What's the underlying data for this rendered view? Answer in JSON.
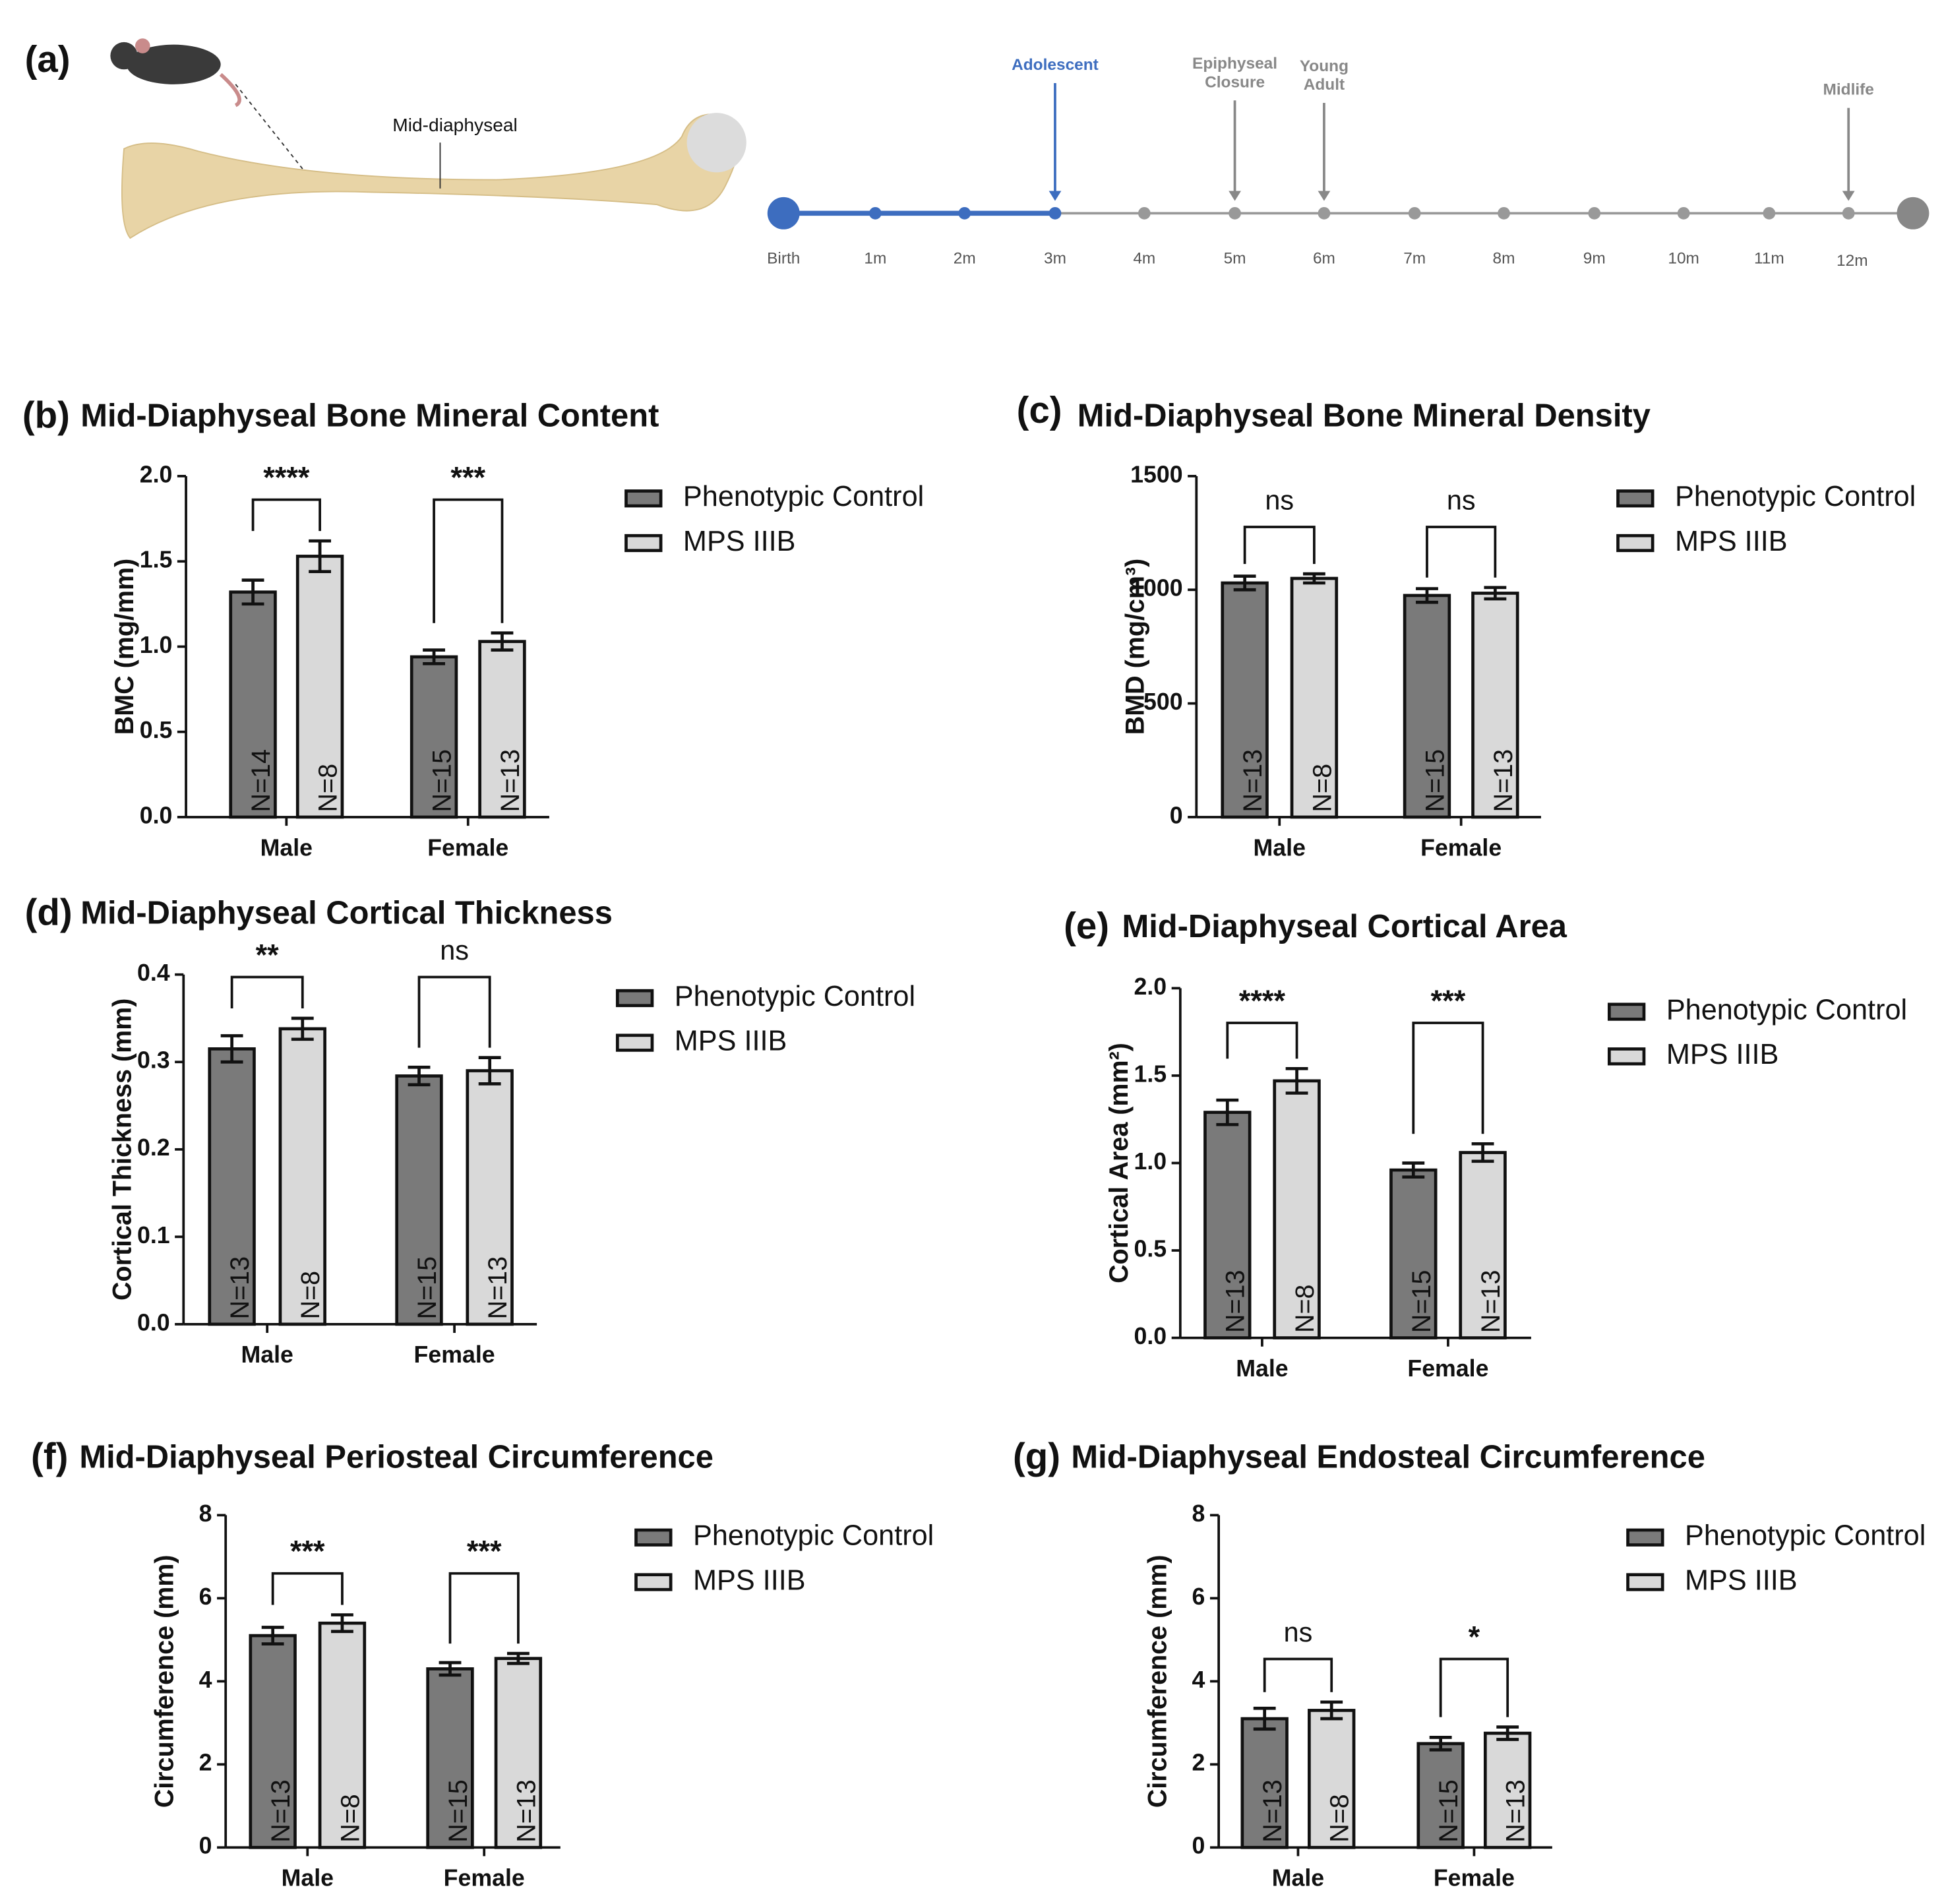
{
  "panel_a": {
    "label": "(a)",
    "bone_label": "Mid-diaphyseal",
    "timeline_ticks": [
      "Birth",
      "1m",
      "2m",
      "3m",
      "4m",
      "5m",
      "6m",
      "7m",
      "8m",
      "9m",
      "10m",
      "11m",
      "12m"
    ],
    "events": [
      {
        "lines": [
          "Adolescent"
        ]
      },
      {
        "lines": [
          "Epiphyseal",
          "Closure"
        ]
      },
      {
        "lines": [
          "Young",
          "Adult"
        ]
      },
      {
        "lines": [
          "Midlife"
        ]
      }
    ]
  },
  "chart_data": [
    {
      "type": "bar",
      "panel_label": "(b)",
      "title": "Mid-Diaphyseal Bone Mineral Content",
      "y_label": "BMC (mg/mm)",
      "categories": [
        "Male",
        "Female"
      ],
      "ylim": [
        0,
        2
      ],
      "yticks": [
        {
          "value": 0,
          "label": "0.0"
        },
        {
          "value": 0.5,
          "label": "0.5"
        },
        {
          "value": 1,
          "label": "1.0"
        },
        {
          "value": 1.5,
          "label": "1.5"
        },
        {
          "value": 2,
          "label": "2.0"
        }
      ],
      "series": [
        {
          "name": "Phenotypic Control",
          "color": "#7a7a7a",
          "values": [
            1.32,
            0.94
          ],
          "errors": [
            0.07,
            0.04
          ],
          "n_labels": [
            "N=14",
            "N=15"
          ]
        },
        {
          "name": "MPS IIIB",
          "color": "#d9d9d9",
          "values": [
            1.53,
            1.03
          ],
          "errors": [
            0.09,
            0.05
          ],
          "n_labels": [
            "N=8",
            "N=13"
          ]
        }
      ],
      "significance": [
        "****",
        "***"
      ]
    },
    {
      "type": "bar",
      "panel_label": "(c)",
      "title": "Mid-Diaphyseal Bone Mineral Density",
      "y_label": "BMD (mg/cm³)",
      "categories": [
        "Male",
        "Female"
      ],
      "ylim": [
        0,
        1500
      ],
      "yticks": [
        0,
        500,
        1000,
        1500
      ],
      "series": [
        {
          "name": "Phenotypic Control",
          "color": "#7a7a7a",
          "values": [
            1030,
            975
          ],
          "errors": [
            30,
            30
          ],
          "n_labels": [
            "N=13",
            "N=15"
          ]
        },
        {
          "name": "MPS IIIB",
          "color": "#d9d9d9",
          "values": [
            1050,
            985
          ],
          "errors": [
            20,
            25
          ],
          "n_labels": [
            "N=8",
            "N=13"
          ]
        }
      ],
      "significance": [
        "ns",
        "ns"
      ]
    },
    {
      "type": "bar",
      "panel_label": "(d)",
      "title": "Mid-Diaphyseal Cortical Thickness",
      "y_label": "Cortical Thickness (mm)",
      "categories": [
        "Male",
        "Female"
      ],
      "ylim": [
        0,
        0.4
      ],
      "yticks": [
        {
          "value": 0,
          "label": "0.0"
        },
        0.1,
        0.2,
        0.3,
        0.4
      ],
      "series": [
        {
          "name": "Phenotypic Control",
          "color": "#7a7a7a",
          "values": [
            0.315,
            0.284
          ],
          "errors": [
            0.015,
            0.01
          ],
          "n_labels": [
            "N=13",
            "N=15"
          ]
        },
        {
          "name": "MPS IIIB",
          "color": "#d9d9d9",
          "values": [
            0.338,
            0.29
          ],
          "errors": [
            0.012,
            0.015
          ],
          "n_labels": [
            "N=8",
            "N=13"
          ]
        }
      ],
      "significance": [
        "**",
        "ns"
      ]
    },
    {
      "type": "bar",
      "panel_label": "(e)",
      "title": "Mid-Diaphyseal Cortical Area",
      "y_label": "Cortical Area (mm²)",
      "categories": [
        "Male",
        "Female"
      ],
      "ylim": [
        0,
        2
      ],
      "yticks": [
        {
          "value": 0,
          "label": "0.0"
        },
        {
          "value": 0.5,
          "label": "0.5"
        },
        {
          "value": 1,
          "label": "1.0"
        },
        {
          "value": 1.5,
          "label": "1.5"
        },
        {
          "value": 2,
          "label": "2.0"
        }
      ],
      "series": [
        {
          "name": "Phenotypic Control",
          "color": "#7a7a7a",
          "values": [
            1.29,
            0.96
          ],
          "errors": [
            0.07,
            0.04
          ],
          "n_labels": [
            "N=13",
            "N=15"
          ]
        },
        {
          "name": "MPS IIIB",
          "color": "#d9d9d9",
          "values": [
            1.47,
            1.06
          ],
          "errors": [
            0.07,
            0.05
          ],
          "n_labels": [
            "N=8",
            "N=13"
          ]
        }
      ],
      "significance": [
        "****",
        "***"
      ]
    },
    {
      "type": "bar",
      "panel_label": "(f)",
      "title": "Mid-Diaphyseal Periosteal Circumference",
      "y_label": "Circumference (mm)",
      "categories": [
        "Male",
        "Female"
      ],
      "ylim": [
        0,
        8
      ],
      "yticks": [
        0,
        2,
        4,
        6,
        8
      ],
      "series": [
        {
          "name": "Phenotypic Control",
          "color": "#7a7a7a",
          "values": [
            5.1,
            4.3
          ],
          "errors": [
            0.2,
            0.15
          ],
          "n_labels": [
            "N=13",
            "N=15"
          ]
        },
        {
          "name": "MPS IIIB",
          "color": "#d9d9d9",
          "values": [
            5.4,
            4.55
          ],
          "errors": [
            0.2,
            0.12
          ],
          "n_labels": [
            "N=8",
            "N=13"
          ]
        }
      ],
      "significance": [
        "***",
        "***"
      ]
    },
    {
      "type": "bar",
      "panel_label": "(g)",
      "title": "Mid-Diaphyseal Endosteal Circumference",
      "y_label": "Circumference (mm)",
      "categories": [
        "Male",
        "Female"
      ],
      "ylim": [
        0,
        8
      ],
      "yticks": [
        0,
        2,
        4,
        6,
        8
      ],
      "series": [
        {
          "name": "Phenotypic Control",
          "color": "#7a7a7a",
          "values": [
            3.1,
            2.5
          ],
          "errors": [
            0.25,
            0.15
          ],
          "n_labels": [
            "N=13",
            "N=15"
          ]
        },
        {
          "name": "MPS IIIB",
          "color": "#d9d9d9",
          "values": [
            3.3,
            2.75
          ],
          "errors": [
            0.2,
            0.15
          ],
          "n_labels": [
            "N=8",
            "N=13"
          ]
        }
      ],
      "significance": [
        "ns",
        "*"
      ]
    }
  ]
}
